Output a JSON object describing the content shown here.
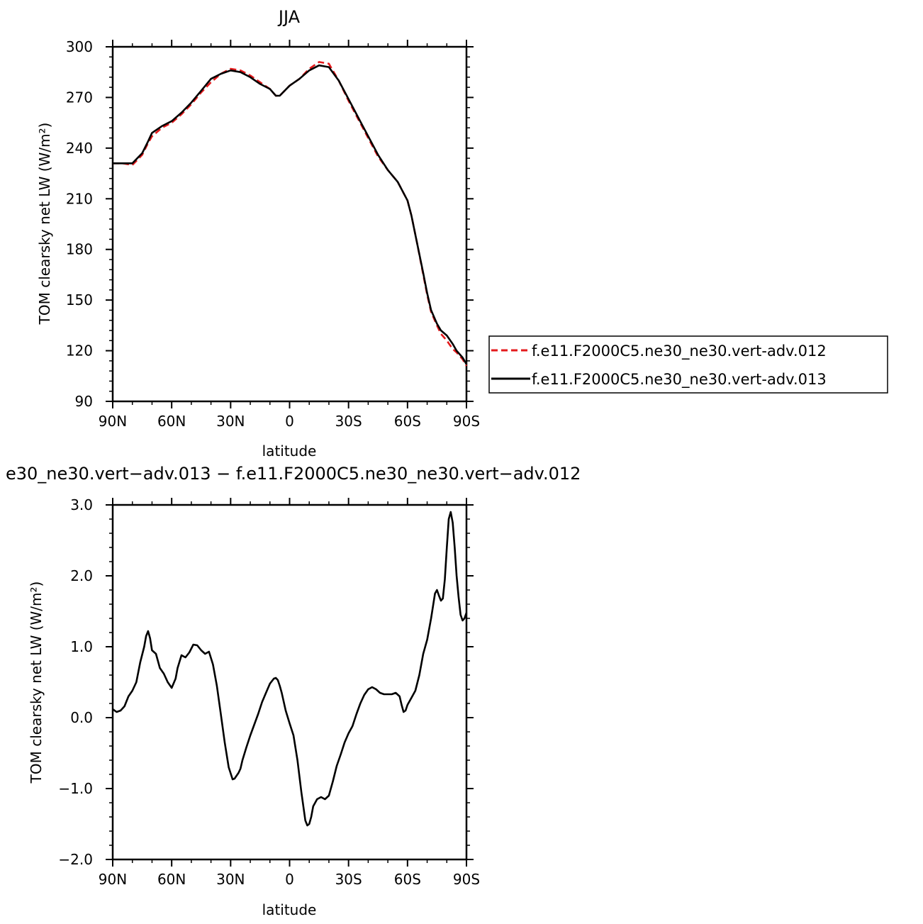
{
  "chart_data": [
    {
      "type": "line",
      "title": "JJA",
      "xlabel": "latitude",
      "ylabel": "TOM clearsky net LW (W/m²)",
      "ylim": [
        90,
        300
      ],
      "xlim": [
        -90,
        90
      ],
      "yticks": [
        90,
        120,
        150,
        180,
        210,
        240,
        270,
        300
      ],
      "xticks": [
        -90,
        -60,
        -30,
        0,
        30,
        60,
        90
      ],
      "xtick_labels": [
        "90N",
        "60N",
        "30N",
        "0",
        "30S",
        "60S",
        "90S"
      ],
      "legend_position": "right",
      "series": [
        {
          "name": "f.e11.F2000C5.ne30_ne30.vert-adv.012",
          "color": "#e41a1c",
          "dash": "dashed",
          "x": [
            -90,
            -85,
            -80,
            -75,
            -72,
            -70,
            -65,
            -60,
            -55,
            -50,
            -45,
            -40,
            -35,
            -30,
            -25,
            -20,
            -15,
            -10,
            -7,
            -5,
            0,
            5,
            10,
            15,
            20,
            25,
            30,
            35,
            40,
            45,
            50,
            55,
            60,
            62,
            65,
            68,
            70,
            72,
            75,
            77,
            80,
            83,
            85,
            88,
            90
          ],
          "y": [
            231,
            231,
            230,
            236,
            243,
            247,
            252,
            255,
            260,
            266,
            273,
            279,
            284,
            287,
            286,
            283,
            279,
            275,
            271,
            271,
            277,
            281,
            287,
            291,
            290,
            280,
            268,
            257,
            246,
            235,
            227,
            220,
            209,
            200,
            183,
            165,
            153,
            143,
            135,
            130,
            126,
            121,
            119,
            115,
            111
          ]
        },
        {
          "name": "f.e11.F2000C5.ne30_ne30.vert-adv.013",
          "color": "#000000",
          "dash": "solid",
          "x": [
            -90,
            -85,
            -80,
            -75,
            -72,
            -70,
            -65,
            -60,
            -55,
            -50,
            -45,
            -40,
            -35,
            -30,
            -25,
            -20,
            -15,
            -10,
            -7,
            -5,
            0,
            5,
            10,
            15,
            20,
            25,
            30,
            35,
            40,
            45,
            50,
            55,
            60,
            62,
            65,
            68,
            70,
            72,
            75,
            77,
            80,
            83,
            85,
            88,
            90
          ],
          "y": [
            231,
            231,
            231,
            237,
            244,
            249,
            253,
            256,
            261,
            267,
            274,
            281,
            284,
            286,
            285,
            282,
            278,
            275,
            271,
            271,
            277,
            281,
            286,
            289,
            288,
            280,
            269,
            258,
            247,
            236,
            227,
            220,
            209,
            200,
            183,
            166,
            154,
            144,
            136,
            132,
            129,
            124,
            120,
            116,
            112
          ]
        }
      ]
    },
    {
      "type": "line",
      "title": "e30_ne30.vert−adv.013 − f.e11.F2000C5.ne30_ne30.vert−adv.012",
      "xlabel": "latitude",
      "ylabel": "TOM clearsky net LW (W/m²)",
      "ylim": [
        -2.0,
        3.0
      ],
      "xlim": [
        -90,
        90
      ],
      "yticks": [
        -2.0,
        -1.0,
        0.0,
        1.0,
        2.0,
        3.0
      ],
      "ytick_labels": [
        "−2.0",
        "−1.0",
        "0.0",
        "1.0",
        "2.0",
        "3.0"
      ],
      "xticks": [
        -90,
        -60,
        -30,
        0,
        30,
        60,
        90
      ],
      "xtick_labels": [
        "90N",
        "60N",
        "30N",
        "0",
        "30S",
        "60S",
        "90S"
      ],
      "series": [
        {
          "color": "#000000",
          "x": [
            -90,
            -88,
            -86,
            -84,
            -82,
            -80,
            -78,
            -76,
            -74,
            -73,
            -72,
            -71,
            -70,
            -68,
            -66,
            -64,
            -62,
            -60,
            -58,
            -57,
            -55,
            -53,
            -51,
            -49,
            -47,
            -45,
            -43,
            -41,
            -39,
            -37,
            -35,
            -33,
            -31,
            -29,
            -28,
            -27,
            -26,
            -25,
            -24,
            -22,
            -20,
            -18,
            -16,
            -14,
            -12,
            -10,
            -8,
            -7,
            -6,
            -5,
            -4,
            -2,
            0,
            2,
            4,
            6,
            8,
            9,
            10,
            11,
            12,
            14,
            16,
            18,
            20,
            22,
            24,
            26,
            28,
            30,
            32,
            34,
            36,
            38,
            40,
            42,
            44,
            46,
            48,
            50,
            52,
            54,
            56,
            57,
            58,
            59,
            60,
            62,
            64,
            66,
            68,
            70,
            72,
            74,
            75,
            76,
            77,
            78,
            79,
            80,
            81,
            82,
            83,
            84,
            85,
            86,
            87,
            88,
            89,
            90
          ],
          "y": [
            0.12,
            0.08,
            0.1,
            0.16,
            0.3,
            0.38,
            0.5,
            0.78,
            1.0,
            1.15,
            1.22,
            1.12,
            0.95,
            0.9,
            0.7,
            0.62,
            0.5,
            0.42,
            0.55,
            0.7,
            0.88,
            0.85,
            0.92,
            1.03,
            1.02,
            0.95,
            0.9,
            0.93,
            0.75,
            0.45,
            0.05,
            -0.35,
            -0.7,
            -0.87,
            -0.86,
            -0.82,
            -0.78,
            -0.72,
            -0.6,
            -0.42,
            -0.25,
            -0.1,
            0.05,
            0.22,
            0.35,
            0.48,
            0.55,
            0.56,
            0.53,
            0.45,
            0.35,
            0.1,
            -0.08,
            -0.25,
            -0.6,
            -1.05,
            -1.45,
            -1.52,
            -1.5,
            -1.4,
            -1.25,
            -1.15,
            -1.12,
            -1.15,
            -1.1,
            -0.9,
            -0.68,
            -0.52,
            -0.35,
            -0.22,
            -0.12,
            0.05,
            0.2,
            0.32,
            0.4,
            0.43,
            0.4,
            0.35,
            0.33,
            0.33,
            0.33,
            0.35,
            0.3,
            0.18,
            0.08,
            0.1,
            0.18,
            0.28,
            0.38,
            0.6,
            0.9,
            1.1,
            1.4,
            1.75,
            1.8,
            1.72,
            1.65,
            1.68,
            1.95,
            2.4,
            2.8,
            2.9,
            2.75,
            2.4,
            2.0,
            1.7,
            1.45,
            1.37,
            1.4,
            1.48
          ]
        }
      ]
    }
  ]
}
